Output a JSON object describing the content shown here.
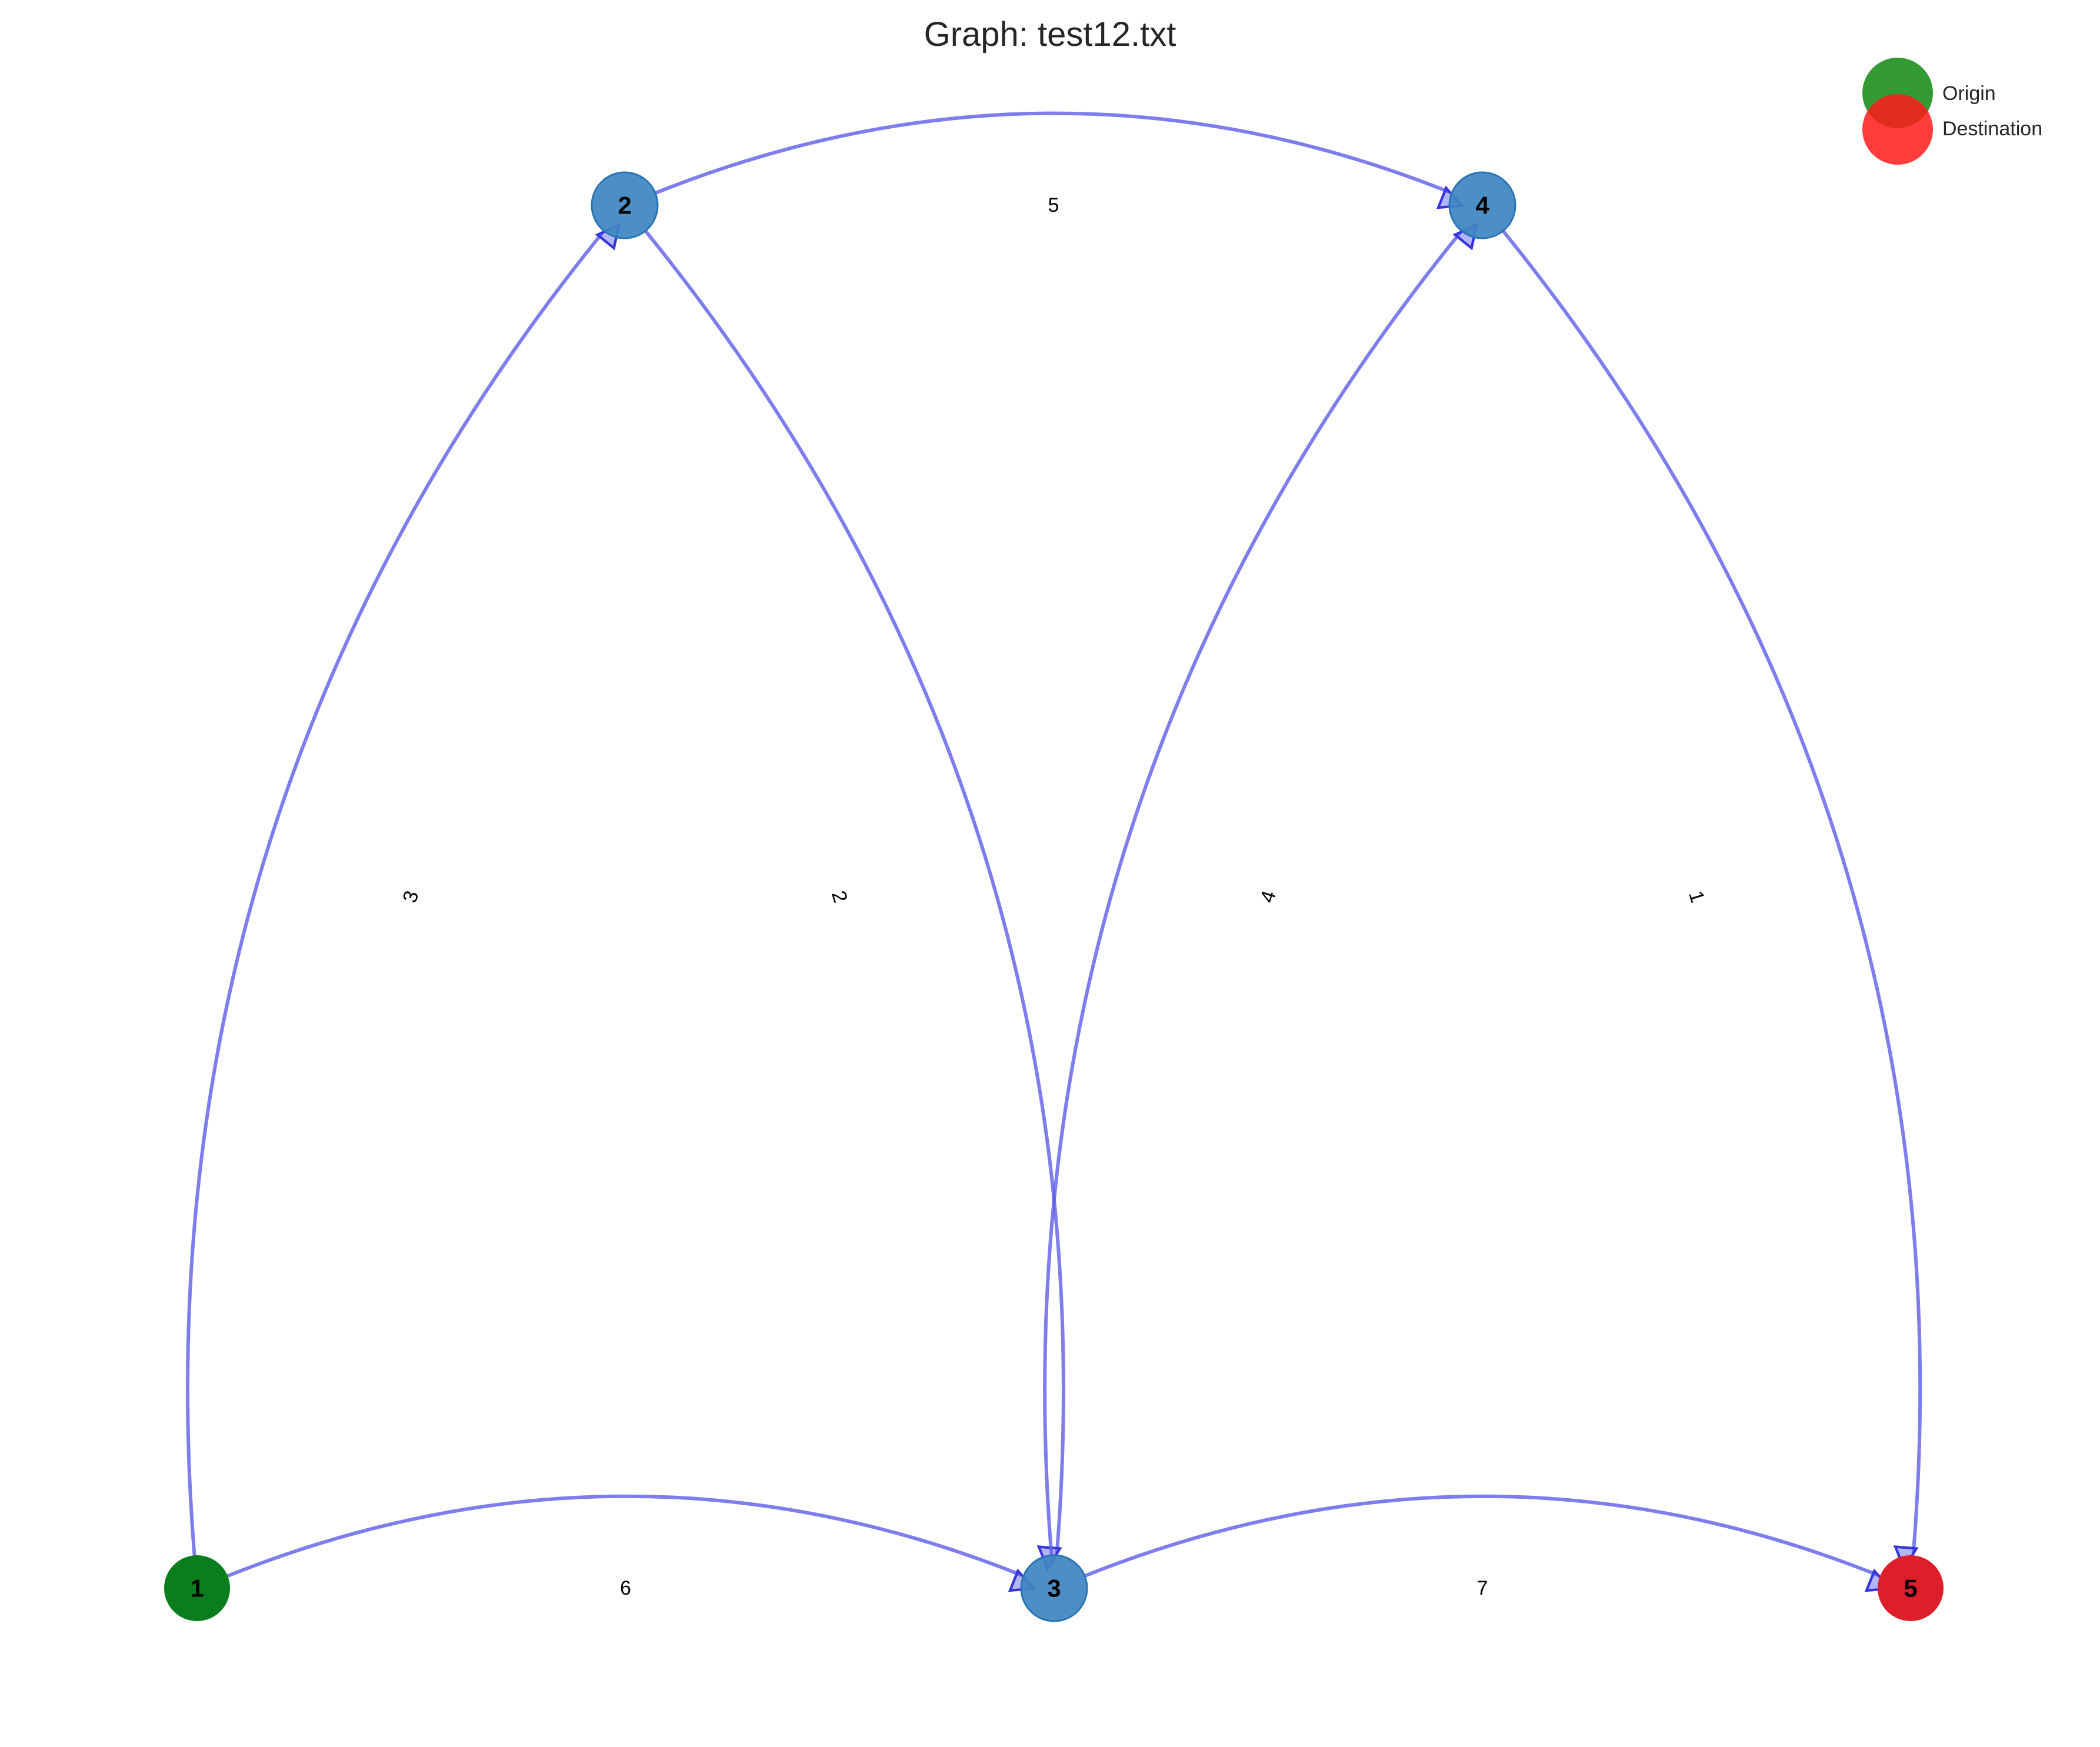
{
  "title": "Graph: test12.txt",
  "legend": {
    "items": [
      {
        "label": "Origin",
        "color": "#118811"
      },
      {
        "label": "Destination",
        "color": "#ff1a1a"
      }
    ]
  },
  "colors": {
    "origin": "#0a7d1e",
    "destination": "#dc1f2a",
    "node": "#3d86c2",
    "node_stroke": "#2a74b3",
    "edge": "#5c5ce8"
  },
  "nodes": [
    {
      "id": "1",
      "label": "1",
      "role": "origin"
    },
    {
      "id": "2",
      "label": "2",
      "role": "normal"
    },
    {
      "id": "3",
      "label": "3",
      "role": "normal"
    },
    {
      "id": "4",
      "label": "4",
      "role": "normal"
    },
    {
      "id": "5",
      "label": "5",
      "role": "destination"
    }
  ],
  "edges": [
    {
      "from": "1",
      "to": "2",
      "weight": "3"
    },
    {
      "from": "1",
      "to": "3",
      "weight": "6"
    },
    {
      "from": "2",
      "to": "3",
      "weight": "2"
    },
    {
      "from": "2",
      "to": "4",
      "weight": "5"
    },
    {
      "from": "3",
      "to": "4",
      "weight": "4"
    },
    {
      "from": "3",
      "to": "5",
      "weight": "7"
    },
    {
      "from": "4",
      "to": "5",
      "weight": "1"
    }
  ]
}
